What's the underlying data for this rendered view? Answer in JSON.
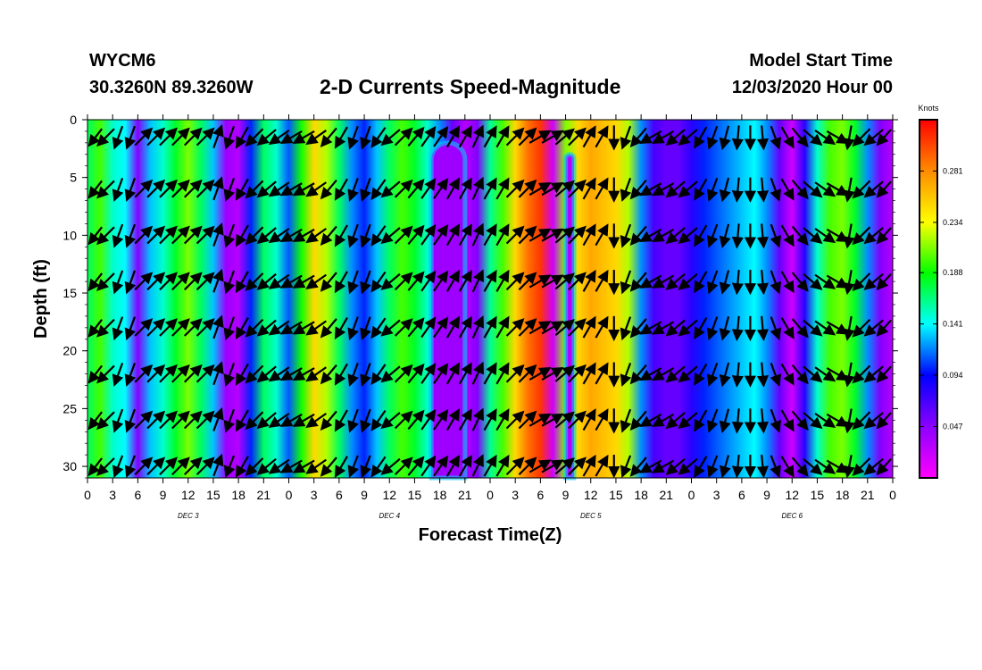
{
  "header": {
    "station": "WYCM6",
    "coords": "30.3260N 89.3260W",
    "title": "2-D Currents Speed-Magnitude",
    "model_start_label": "Model Start Time",
    "model_start_value": "12/03/2020 Hour 00"
  },
  "chart_data": {
    "type": "heatmap",
    "xlabel": "Forecast Time(Z)",
    "ylabel": "Depth (ft)",
    "ylim": [
      0,
      31
    ],
    "y_inverted": true,
    "x_hours_range": [
      0,
      96
    ],
    "x_ticks": [
      "0",
      "3",
      "6",
      "9",
      "12",
      "15",
      "18",
      "21",
      "0",
      "3",
      "6",
      "9",
      "12",
      "15",
      "18",
      "21",
      "0",
      "3",
      "6",
      "9",
      "12",
      "15",
      "18",
      "21",
      "0",
      "3",
      "6",
      "9",
      "12",
      "15",
      "18",
      "21",
      "0"
    ],
    "y_ticks": [
      0,
      5,
      10,
      15,
      20,
      25,
      30
    ],
    "day_labels": [
      {
        "hour": 12,
        "text": "DEC 3"
      },
      {
        "hour": 36,
        "text": "DEC 4"
      },
      {
        "hour": 60,
        "text": "DEC 5"
      },
      {
        "hour": 84,
        "text": "DEC 6"
      }
    ],
    "colorbar": {
      "units": "Knots",
      "min": 0.0,
      "max": 0.328,
      "ticks": [
        0.047,
        0.094,
        0.141,
        0.188,
        0.234,
        0.281
      ],
      "colors": [
        "#ff00ff",
        "#8c00ff",
        "#0000ff",
        "#00ffff",
        "#00ff00",
        "#ffff00",
        "#ff8c00",
        "#ff0000"
      ]
    },
    "speed_profile": {
      "hours": [
        0,
        1.5,
        3,
        4.5,
        6,
        7.5,
        9,
        10.5,
        12,
        13.5,
        15,
        16.5,
        18,
        19.5,
        21,
        22.5,
        24,
        25.5,
        27,
        28.5,
        30,
        31.5,
        33,
        34.5,
        36,
        37.5,
        39,
        40.5,
        42,
        43.5,
        45,
        46.5,
        48,
        49.5,
        51,
        52.5,
        54,
        55.5,
        57,
        58.5,
        60,
        61.5,
        63,
        64.5,
        66,
        67.5,
        69,
        70.5,
        72,
        73.5,
        75,
        76.5,
        78,
        79.5,
        81,
        82.5,
        84,
        85.5,
        87,
        88.5,
        90,
        91.5,
        93,
        94.5,
        96
      ],
      "knots": [
        0.17,
        0.2,
        0.15,
        0.14,
        0.05,
        0.13,
        0.15,
        0.18,
        0.21,
        0.17,
        0.13,
        0.04,
        0.03,
        0.1,
        0.17,
        0.15,
        0.11,
        0.19,
        0.25,
        0.22,
        0.17,
        0.12,
        0.1,
        0.13,
        0.17,
        0.2,
        0.18,
        0.15,
        0.12,
        0.06,
        0.03,
        0.05,
        0.16,
        0.2,
        0.25,
        0.29,
        0.31,
        0.02,
        0.21,
        0.25,
        0.27,
        0.26,
        0.25,
        0.22,
        0.12,
        0.07,
        0.06,
        0.06,
        0.08,
        0.1,
        0.11,
        0.12,
        0.13,
        0.14,
        0.12,
        0.06,
        0.02,
        0.08,
        0.15,
        0.2,
        0.21,
        0.18,
        0.12,
        0.05,
        0.03
      ]
    },
    "surface_low_features": [
      {
        "hour_start": 41,
        "hour_end": 45,
        "depth_top": 2,
        "knots": 0.04
      },
      {
        "hour_start": 57,
        "hour_end": 58,
        "depth_top": 3,
        "knots": 0.03
      }
    ],
    "vector_rows_depth": [
      1.5,
      6,
      10,
      14,
      18,
      22,
      26,
      30
    ],
    "vector_angles_deg": [
      225,
      225,
      200,
      200,
      45,
      45,
      45,
      45,
      45,
      45,
      20,
      200,
      210,
      225,
      230,
      235,
      240,
      240,
      235,
      220,
      210,
      200,
      200,
      215,
      230,
      45,
      40,
      35,
      35,
      30,
      30,
      25,
      30,
      30,
      45,
      45,
      60,
      60,
      50,
      45,
      30,
      30,
      180,
      200,
      220,
      240,
      240,
      230,
      230,
      210,
      200,
      195,
      185,
      180,
      175,
      160,
      150,
      140,
      130,
      125,
      120,
      190,
      225,
      230,
      230
    ]
  }
}
